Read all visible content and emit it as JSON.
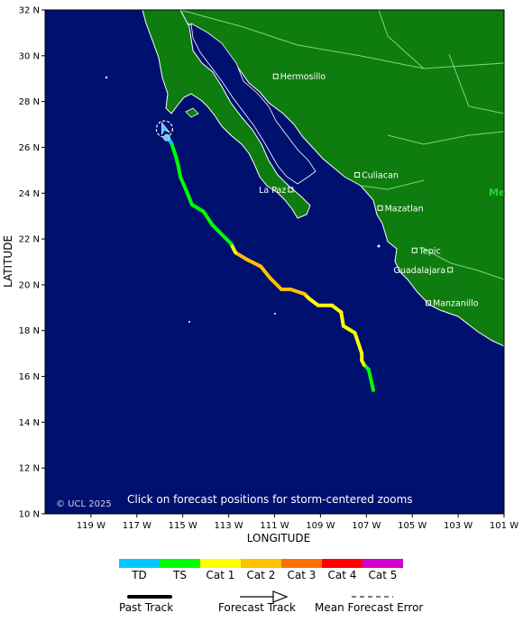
{
  "map": {
    "copyright": "© UCL 2025",
    "notice": "Click on forecast positions for storm-centered zooms",
    "x_axis_title": "LONGITUDE",
    "y_axis_title": "LATITUDE",
    "lat_range": [
      10,
      32
    ],
    "lon_range": [
      -121,
      -101
    ],
    "lat_ticks": [
      {
        "value": 32,
        "label": "32 N"
      },
      {
        "value": 30,
        "label": "30 N"
      },
      {
        "value": 28,
        "label": "28 N"
      },
      {
        "value": 26,
        "label": "26 N"
      },
      {
        "value": 24,
        "label": "24 N"
      },
      {
        "value": 22,
        "label": "22 N"
      },
      {
        "value": 20,
        "label": "20 N"
      },
      {
        "value": 18,
        "label": "18 N"
      },
      {
        "value": 16,
        "label": "16 N"
      },
      {
        "value": 14,
        "label": "14 N"
      },
      {
        "value": 12,
        "label": "12 N"
      },
      {
        "value": 10,
        "label": "10 N"
      }
    ],
    "lon_ticks": [
      {
        "value": -119,
        "label": "119 W"
      },
      {
        "value": -117,
        "label": "117 W"
      },
      {
        "value": -115,
        "label": "115 W"
      },
      {
        "value": -113,
        "label": "113 W"
      },
      {
        "value": -111,
        "label": "111 W"
      },
      {
        "value": -109,
        "label": "109 W"
      },
      {
        "value": -107,
        "label": "107 W"
      },
      {
        "value": -105,
        "label": "105 W"
      },
      {
        "value": -103,
        "label": "103 W"
      },
      {
        "value": -101,
        "label": "101 W"
      }
    ],
    "cities": [
      {
        "name": "Hermosillo",
        "lat": 29.1,
        "lon": -110.95
      },
      {
        "name": "Culiacan",
        "lat": 24.8,
        "lon": -107.4
      },
      {
        "name": "La Paz",
        "lat": 24.15,
        "lon": -110.3
      },
      {
        "name": "Mazatlan",
        "lat": 23.35,
        "lon": -106.4
      },
      {
        "name": "Tepic",
        "lat": 21.5,
        "lon": -104.9
      },
      {
        "name": "Guadalajara",
        "lat": 20.65,
        "lon": -103.35
      },
      {
        "name": "Manzanillo",
        "lat": 19.2,
        "lon": -104.3
      }
    ],
    "country_label": "Me",
    "colors": {
      "ocean": "#00106e",
      "land": "#0e7c0e",
      "coast": "#ffffff",
      "border": "#7fd67f",
      "current_position": "#3cc8ff"
    },
    "track": [
      {
        "lat": 15.4,
        "lon": -106.7,
        "cat": "TS"
      },
      {
        "lat": 16.3,
        "lon": -106.9,
        "cat": "TS"
      },
      {
        "lat": 16.5,
        "lon": -107.1,
        "cat": "Cat 1"
      },
      {
        "lat": 16.7,
        "lon": -107.2,
        "cat": "Cat 1"
      },
      {
        "lat": 17.0,
        "lon": -107.2,
        "cat": "Cat 1"
      },
      {
        "lat": 17.3,
        "lon": -107.3,
        "cat": "Cat 1"
      },
      {
        "lat": 17.9,
        "lon": -107.5,
        "cat": "Cat 1"
      },
      {
        "lat": 18.2,
        "lon": -108.0,
        "cat": "Cat 1"
      },
      {
        "lat": 18.8,
        "lon": -108.1,
        "cat": "Cat 1"
      },
      {
        "lat": 19.1,
        "lon": -108.5,
        "cat": "Cat 1"
      },
      {
        "lat": 19.1,
        "lon": -109.1,
        "cat": "Cat 1"
      },
      {
        "lat": 19.4,
        "lon": -109.5,
        "cat": "Cat 1"
      },
      {
        "lat": 19.6,
        "lon": -109.7,
        "cat": "Cat 2"
      },
      {
        "lat": 19.8,
        "lon": -110.3,
        "cat": "Cat 2"
      },
      {
        "lat": 19.8,
        "lon": -110.7,
        "cat": "Cat 2"
      },
      {
        "lat": 20.3,
        "lon": -111.2,
        "cat": "Cat 2"
      },
      {
        "lat": 20.8,
        "lon": -111.6,
        "cat": "Cat 2"
      },
      {
        "lat": 21.1,
        "lon": -112.2,
        "cat": "Cat 2"
      },
      {
        "lat": 21.4,
        "lon": -112.7,
        "cat": "Cat 1"
      },
      {
        "lat": 21.8,
        "lon": -112.9,
        "cat": "TS"
      },
      {
        "lat": 22.6,
        "lon": -113.7,
        "cat": "TS"
      },
      {
        "lat": 23.2,
        "lon": -114.1,
        "cat": "TS"
      },
      {
        "lat": 23.5,
        "lon": -114.6,
        "cat": "TS"
      },
      {
        "lat": 24.0,
        "lon": -114.8,
        "cat": "TS"
      },
      {
        "lat": 24.7,
        "lon": -115.1,
        "cat": "TS"
      },
      {
        "lat": 25.2,
        "lon": -115.2,
        "cat": "TS"
      },
      {
        "lat": 25.6,
        "lon": -115.3,
        "cat": "TS"
      },
      {
        "lat": 26.2,
        "lon": -115.5,
        "cat": "TD"
      },
      {
        "lat": 26.5,
        "lon": -115.7,
        "cat": "TD"
      }
    ],
    "current_position": {
      "lat": 26.8,
      "lon": -115.8
    }
  },
  "legend": {
    "categories": [
      {
        "label": "TD",
        "color": "#00c8ff"
      },
      {
        "label": "TS",
        "color": "#00ff00"
      },
      {
        "label": "Cat 1",
        "color": "#ffff00"
      },
      {
        "label": "Cat 2",
        "color": "#ffc000"
      },
      {
        "label": "Cat 3",
        "color": "#ff7000"
      },
      {
        "label": "Cat 4",
        "color": "#ff0000"
      },
      {
        "label": "Cat 5",
        "color": "#d000d0"
      }
    ],
    "past_track": "Past Track",
    "forecast_track": "Forecast Track",
    "mean_error": "Mean Forecast Error"
  }
}
